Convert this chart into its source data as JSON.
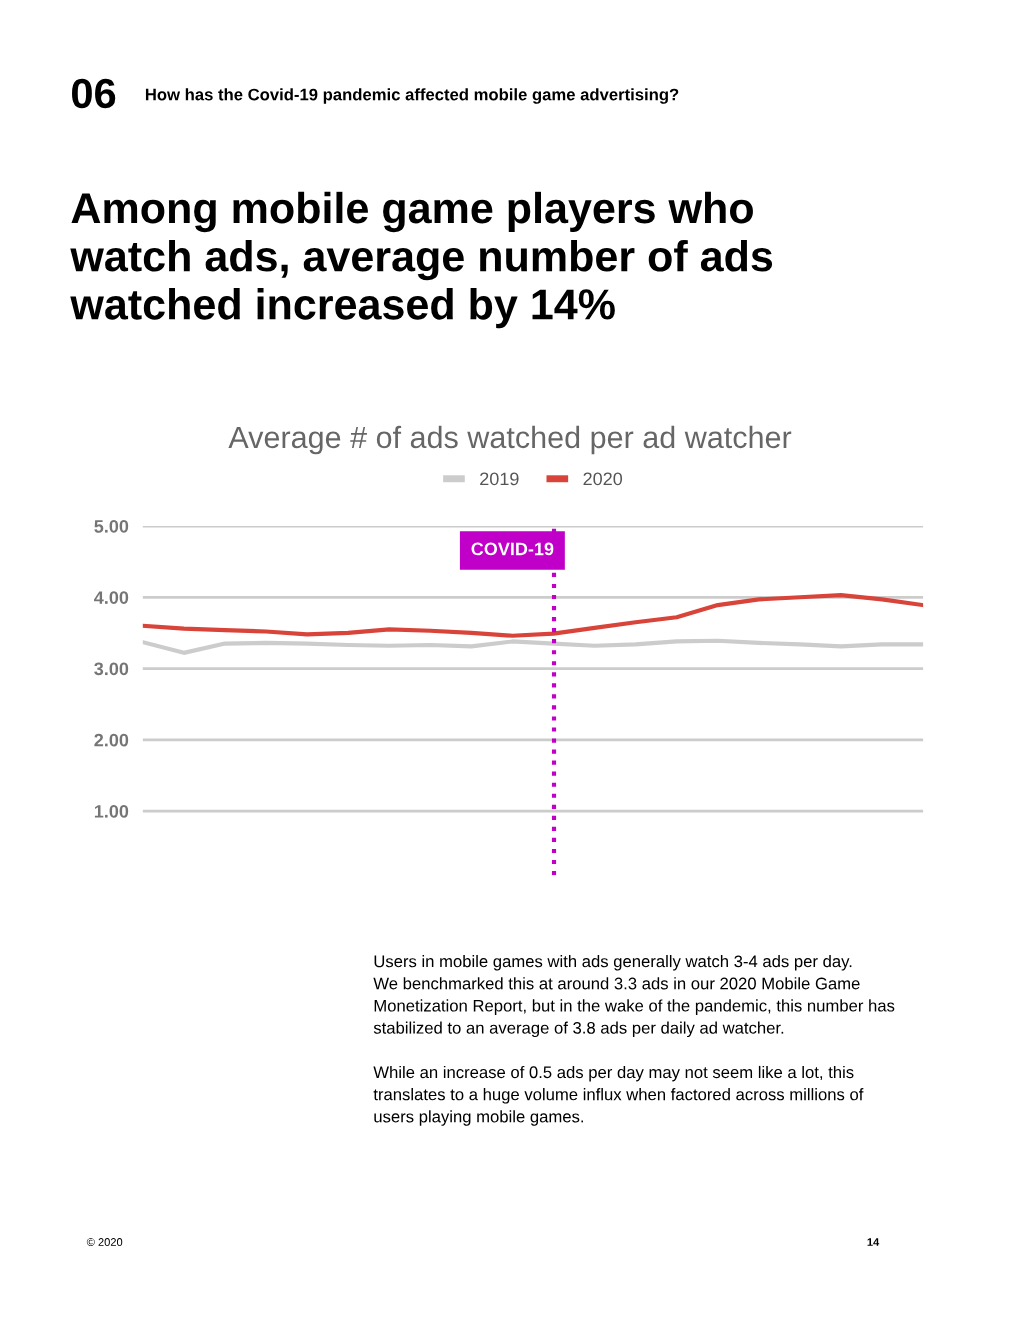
{
  "chart_data": {
    "type": "line",
    "title": "Among mobile game players who\nwatch ads, average number of ads\nwatched increased by 14%",
    "subtitle": "Average # of ads watched per ad watcher",
    "annotations": [
      "06",
      "How has the Covid-19 pandemic affected mobile game advertising?",
      "Users in mobile games with ads generally watch 3-4 ads per day.\nWe benchmarked this at around 3.3 ads in our 2020 Mobile Game\nMonetization Report, but in the wake of the pandemic, this number has\nstabilized to an average of 3.8 ads per daily ad watcher.\n\nWhile an increase of 0.5 ads per day may not seem like a lot, this\ntranslates to a huge volume influx when factored across millions of\nusers playing mobile games.",
      "© 2020",
      "14",
      "COVID-19"
    ],
    "categories": [
      null,
      null,
      null,
      null,
      null,
      null,
      null,
      null,
      null,
      null,
      null,
      null,
      null,
      null,
      null,
      null,
      null,
      null,
      null,
      null
    ],
    "series": [
      {
        "name": "2019",
        "color": "#cccccc",
        "values": [
          3.37,
          3.22,
          3.35,
          3.36,
          3.35,
          3.33,
          3.32,
          3.33,
          3.31,
          3.38,
          3.35,
          3.32,
          3.34,
          3.38,
          3.39,
          3.36,
          3.34,
          3.31,
          3.34,
          3.34
        ]
      },
      {
        "name": "2020",
        "color": "#d9443a",
        "values": [
          3.6,
          3.56,
          3.54,
          3.52,
          3.48,
          3.5,
          3.55,
          3.53,
          3.5,
          3.46,
          3.49,
          3.57,
          3.65,
          3.72,
          3.89,
          3.97,
          4.0,
          4.03,
          3.97,
          3.89
        ]
      }
    ],
    "ylim": [
      0.1,
      5
    ],
    "yticks": [
      {
        "value": 1,
        "label": "1.00"
      },
      {
        "value": 2,
        "label": "2.00"
      },
      {
        "value": 3,
        "label": "3.00"
      },
      {
        "value": 4,
        "label": "4.00"
      },
      {
        "value": 5,
        "label": "5.00"
      }
    ],
    "tick_labels": "y",
    "grid": "y",
    "legend": "top",
    "marker": "none",
    "line_style": "solid"
  }
}
